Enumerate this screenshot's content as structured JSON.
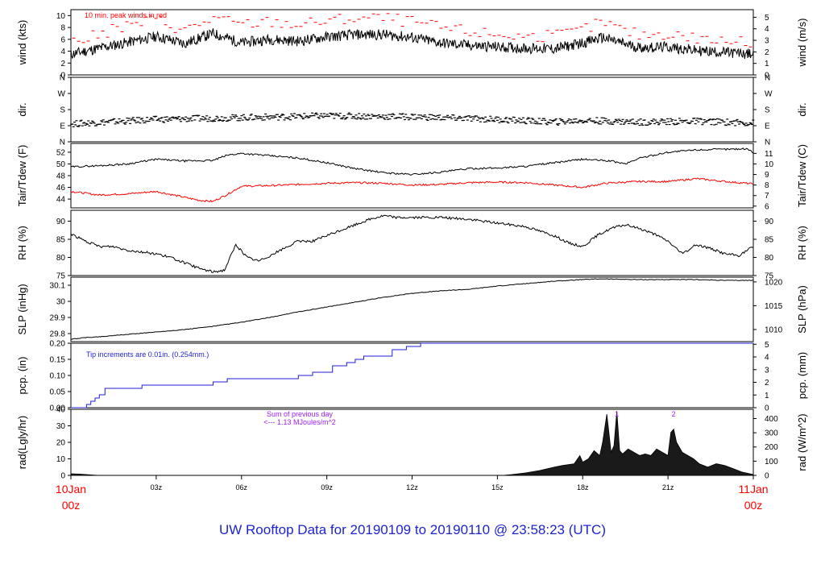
{
  "footer": {
    "title": "UW Rooftop Data for 20190109  to  20190110 @ 23:58:23  (UTC)"
  },
  "colors": {
    "black": "#000000",
    "red": "#ff0000",
    "blue": "#1f1fd6",
    "purple": "#a020f0",
    "title_blue": "#1d24d0"
  },
  "chart_data": {
    "type": "line",
    "x_axis": {
      "range": [
        0,
        24
      ],
      "ticks": [
        0,
        3,
        6,
        9,
        12,
        15,
        18,
        21,
        24
      ],
      "tick_labels": [
        "",
        "03z",
        "06z",
        "09z",
        "12z",
        "15z",
        "18z",
        "21z",
        ""
      ],
      "start_label": [
        "10Jan",
        "00z"
      ],
      "end_label": [
        "11Jan",
        "00z"
      ]
    },
    "panels": [
      {
        "id": "wind",
        "ylabel_left": "wind (kts)",
        "ylabel_right": "wind (m/s)",
        "ylim": [
          0,
          11
        ],
        "left_ticks": [
          0,
          2,
          4,
          6,
          8,
          10
        ],
        "right_ticks": [
          0,
          1,
          2,
          3,
          4,
          5
        ],
        "right_scale": 1.944,
        "annotation": "10 min. peak winds in red",
        "series": [
          {
            "name": "",
            "color": "#000000",
            "style": "noisy",
            "noise": 0.9,
            "seed": 11,
            "x": [
              0,
              1,
              2,
              3,
              4,
              5,
              6,
              7,
              8,
              9,
              10,
              11,
              12,
              13,
              14,
              15,
              16,
              17,
              18,
              18.7,
              19.5,
              20,
              21,
              22,
              23,
              24
            ],
            "y": [
              3.5,
              4.5,
              5.5,
              6.5,
              5.3,
              7.0,
              5.4,
              6.0,
              5.7,
              6.4,
              6.8,
              6.8,
              6.3,
              5.4,
              5.0,
              4.7,
              4.5,
              4.4,
              5.4,
              6.3,
              5.2,
              4.6,
              4.7,
              4.1,
              3.8,
              3.5
            ]
          },
          {
            "name": "",
            "color": "#ff0000",
            "style": "dashes",
            "noise": 1.0,
            "seed": 29,
            "x": [
              0,
              1,
              2,
              3,
              4,
              5,
              6,
              7,
              8,
              9,
              10,
              11,
              12,
              13,
              14,
              15,
              16,
              17,
              18,
              18.7,
              19.5,
              20,
              21,
              22,
              23,
              24
            ],
            "y": [
              5.5,
              6.8,
              8.3,
              9.4,
              7.5,
              9.6,
              8.5,
              9.0,
              8.5,
              9.1,
              9.6,
              9.6,
              9.0,
              8.0,
              7.3,
              6.8,
              6.5,
              6.5,
              7.6,
              8.9,
              7.4,
              6.8,
              7.0,
              6.2,
              5.7,
              5.3
            ]
          }
        ]
      },
      {
        "id": "dir",
        "ylabel_left": "dir.",
        "ylabel_right": "dir.",
        "ylim": [
          0,
          360
        ],
        "left_ticks": [
          0,
          90,
          180,
          270,
          360
        ],
        "left_tick_labels": [
          "N",
          "E",
          "S",
          "W",
          "N"
        ],
        "right_ticks": [
          0,
          90,
          180,
          270,
          360
        ],
        "right_tick_labels": [
          "N",
          "E",
          "S",
          "W",
          "N"
        ],
        "series": [
          {
            "name": "",
            "color": "#000000",
            "style": "dirdots",
            "noise": 18,
            "seed": 7,
            "x": [
              0,
              3,
              6,
              9,
              12,
              15,
              17,
              18,
              20,
              22,
              24
            ],
            "y": [
              100,
              125,
              135,
              145,
              140,
              125,
              110,
              120,
              110,
              115,
              105
            ]
          }
        ]
      },
      {
        "id": "temp",
        "ylabel_left": "Tair/Tdew (F)",
        "ylabel_right": "Tair/Tdew (C)",
        "ylim": [
          42.5,
          53.5
        ],
        "left_ticks": [
          44,
          46,
          48,
          50,
          52
        ],
        "right_ticks": [
          6,
          7,
          8,
          9,
          10,
          11
        ],
        "right_unit": "C",
        "series": [
          {
            "name": "",
            "color": "#000000",
            "style": "smooth",
            "noise": 0.15,
            "seed": 3,
            "x": [
              0,
              1,
              2,
              3,
              4,
              5,
              5.5,
              6,
              7,
              8,
              9,
              10,
              11,
              12,
              13,
              14,
              15,
              16,
              17,
              18,
              19,
              19.5,
              20,
              21,
              22,
              23,
              23.8,
              24
            ],
            "y": [
              49.5,
              49.7,
              50.0,
              50.8,
              50.5,
              50.6,
              51.5,
              51.8,
              51.4,
              51.0,
              50.2,
              49.2,
              48.5,
              48.2,
              48.6,
              49.2,
              49.3,
              49.6,
              50.2,
              50.8,
              50.5,
              50.0,
              51.0,
              52.0,
              52.4,
              52.5,
              52.6,
              51.8
            ]
          },
          {
            "name": "",
            "color": "#ff0000",
            "style": "smooth",
            "noise": 0.15,
            "seed": 5,
            "x": [
              0,
              1,
              2,
              3,
              4,
              4.5,
              5,
              5.5,
              6,
              7,
              8,
              9,
              10,
              11,
              12,
              13,
              14,
              15,
              16,
              17,
              18,
              18.8,
              19.5,
              20,
              21,
              22,
              23,
              24
            ],
            "y": [
              45.3,
              44.7,
              44.9,
              45.3,
              44.3,
              43.8,
              43.6,
              44.8,
              46.2,
              46.3,
              46.5,
              46.7,
              46.8,
              46.7,
              46.4,
              46.5,
              46.8,
              46.9,
              46.8,
              46.4,
              46.0,
              46.7,
              46.9,
              47.0,
              47.0,
              47.5,
              47.0,
              46.6
            ]
          }
        ]
      },
      {
        "id": "rh",
        "ylabel_left": "RH (%)",
        "ylabel_right": "RH (%)",
        "ylim": [
          75,
          93
        ],
        "left_ticks": [
          75,
          80,
          85,
          90
        ],
        "right_ticks": [
          75,
          80,
          85,
          90
        ],
        "series": [
          {
            "name": "",
            "color": "#000000",
            "style": "smooth",
            "noise": 0.35,
            "seed": 17,
            "x": [
              0,
              0.5,
              1,
              1.5,
              2,
              2.5,
              3,
              3.5,
              4,
              4.5,
              5,
              5.4,
              5.8,
              6.2,
              6.6,
              7,
              7.5,
              8,
              8.5,
              9,
              9.5,
              10,
              10.5,
              11,
              11.5,
              12,
              13,
              14,
              15,
              16,
              17,
              17.5,
              18,
              18.5,
              19,
              19.5,
              20,
              20.5,
              21,
              21.5,
              22,
              22.5,
              23,
              23.5,
              24
            ],
            "y": [
              86.5,
              84.5,
              83.0,
              83.0,
              82.0,
              81.5,
              81.0,
              80.0,
              78.5,
              77.0,
              76.0,
              76.5,
              83.5,
              80.0,
              79.0,
              80.5,
              82.5,
              84.5,
              84.5,
              86.0,
              87.5,
              89.0,
              90.5,
              91.5,
              91.0,
              91.0,
              91.0,
              90.5,
              89.5,
              88.5,
              86.0,
              84.0,
              83.0,
              86.0,
              88.0,
              89.0,
              88.0,
              86.5,
              84.5,
              81.0,
              83.5,
              82.5,
              81.0,
              80.5,
              83.0
            ]
          }
        ]
      },
      {
        "id": "slp",
        "ylabel_left": "SLP (inHg)",
        "ylabel_right": "SLP (hPa)",
        "ylim": [
          29.75,
          30.15
        ],
        "left_ticks": [
          29.8,
          29.9,
          30.0,
          30.1
        ],
        "right_ticks": [
          1010,
          1015,
          1020
        ],
        "right_unit": "hPa",
        "series": [
          {
            "name": "",
            "color": "#000000",
            "style": "smooth",
            "noise": 0.002,
            "seed": 23,
            "x": [
              0,
              0.5,
              1,
              2,
              3,
              4,
              5,
              6,
              7,
              8,
              9,
              10,
              11,
              12,
              13,
              14,
              15,
              16,
              17,
              18,
              18.7,
              19,
              20,
              21,
              22,
              23,
              24
            ],
            "y": [
              29.765,
              29.775,
              29.78,
              29.795,
              29.81,
              29.825,
              29.845,
              29.87,
              29.9,
              29.935,
              29.965,
              29.995,
              30.025,
              30.05,
              30.065,
              30.075,
              30.095,
              30.11,
              30.125,
              30.135,
              30.14,
              30.138,
              30.135,
              30.135,
              30.135,
              30.13,
              30.13
            ]
          }
        ]
      },
      {
        "id": "pcp",
        "ylabel_left": "pcp. (in)",
        "ylabel_right": "pcp. (mm)",
        "ylim": [
          0,
          0.2
        ],
        "left_ticks": [
          0.0,
          0.05,
          0.1,
          0.15,
          0.2
        ],
        "left_tick_labels": [
          "0.00",
          "0.05",
          "0.10",
          "0.15",
          "0.20"
        ],
        "right_ticks": [
          0,
          1,
          2,
          3,
          4,
          5
        ],
        "right_unit": "mm",
        "annotation": "Tip increments are 0.01in. (0.254mm.)",
        "series": [
          {
            "name": "",
            "color": "#1f1fd6",
            "style": "step",
            "noise": 0,
            "seed": 0,
            "x": [
              0,
              0.55,
              0.7,
              0.85,
              1.0,
              1.2,
              2.5,
              5.0,
              5.5,
              8.0,
              8.5,
              9.2,
              9.7,
              10.0,
              10.3,
              11.3,
              11.8,
              12.3,
              18.6,
              24
            ],
            "y": [
              0.0,
              0.01,
              0.02,
              0.03,
              0.04,
              0.06,
              0.07,
              0.08,
              0.09,
              0.1,
              0.11,
              0.13,
              0.14,
              0.15,
              0.16,
              0.18,
              0.19,
              0.2,
              0.21,
              0.21
            ]
          }
        ]
      },
      {
        "id": "rad",
        "ylabel_left": "rad(Lgly/hr)",
        "ylabel_right": "rad (W/m^2)",
        "ylim": [
          0,
          40
        ],
        "left_ticks": [
          0,
          10,
          20,
          30,
          40
        ],
        "right_ticks": [
          0,
          100,
          200,
          300,
          400
        ],
        "right_unit": "W",
        "annotation_lines": [
          "Sum of previous day",
          "<--- 1.13 MJoules/m^2"
        ],
        "peak_labels": [
          {
            "x": 19.2,
            "text": "1"
          },
          {
            "x": 21.2,
            "text": "2"
          }
        ],
        "series": [
          {
            "name": "",
            "color": "#000000",
            "style": "fill",
            "noise": 0,
            "seed": 0,
            "x": [
              0,
              0.3,
              0.8,
              1.0,
              15.2,
              15.5,
              16.0,
              16.5,
              17.0,
              17.3,
              17.5,
              17.7,
              17.9,
              18.0,
              18.2,
              18.4,
              18.6,
              18.7,
              18.85,
              19.0,
              19.1,
              19.2,
              19.3,
              19.4,
              19.6,
              19.8,
              20.0,
              20.2,
              20.4,
              20.6,
              20.8,
              21.0,
              21.1,
              21.2,
              21.3,
              21.5,
              21.7,
              21.9,
              22.1,
              22.4,
              22.7,
              23.0,
              23.3,
              23.6,
              24.0
            ],
            "y": [
              1.0,
              0.8,
              0.2,
              0.0,
              0.0,
              0.5,
              1.5,
              3.0,
              5.0,
              6.0,
              6.5,
              7.0,
              12.0,
              8.0,
              10.0,
              15.0,
              12.0,
              20.0,
              37.0,
              14.0,
              18.0,
              39.0,
              15.0,
              13.0,
              16.0,
              14.0,
              12.0,
              13.0,
              12.0,
              16.0,
              14.0,
              12.0,
              26.0,
              28.0,
              20.0,
              14.0,
              12.0,
              10.0,
              7.0,
              5.0,
              7.0,
              6.0,
              4.0,
              2.0,
              0.5
            ]
          }
        ]
      }
    ]
  }
}
